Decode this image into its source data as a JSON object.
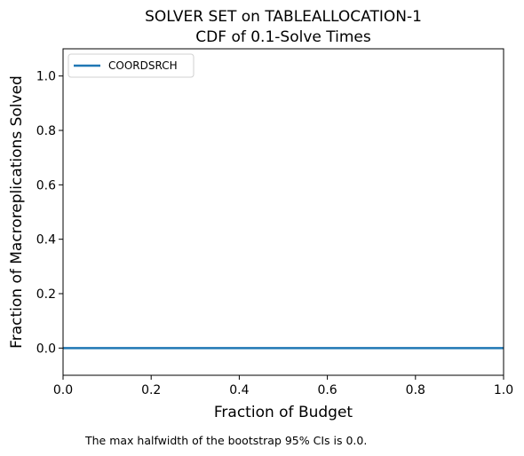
{
  "chart_data": {
    "type": "line",
    "title": "SOLVER SET on TABLEALLOCATION-1",
    "subtitle": "CDF of 0.1-Solve Times",
    "xlabel": "Fraction of Budget",
    "ylabel": "Fraction of Macroreplications Solved",
    "xlim": [
      0,
      1
    ],
    "ylim": [
      -0.1,
      1.1
    ],
    "xticks": [
      "0.0",
      "0.2",
      "0.4",
      "0.6",
      "0.8",
      "1.0"
    ],
    "yticks": [
      "0.0",
      "0.2",
      "0.4",
      "0.6",
      "0.8",
      "1.0"
    ],
    "grid": false,
    "legend_position": "top-left",
    "series": [
      {
        "name": "COORDSRCH",
        "color": "#1f77b4",
        "x": [
          0,
          1
        ],
        "y": [
          0,
          0
        ]
      }
    ]
  },
  "footnote": "The max halfwidth of the bootstrap 95% CIs is 0.0."
}
